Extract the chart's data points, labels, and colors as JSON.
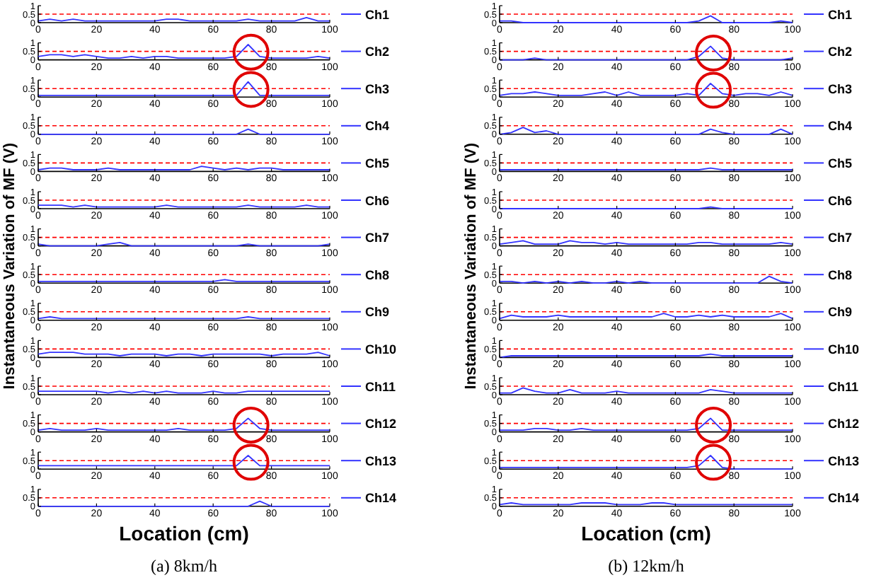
{
  "chart_data": [
    {
      "type": "line",
      "x": [
        0,
        4,
        8,
        12,
        16,
        20,
        24,
        28,
        32,
        36,
        40,
        44,
        48,
        52,
        56,
        60,
        64,
        68,
        72,
        76,
        80,
        84,
        88,
        92,
        96,
        100
      ],
      "xlim": [
        0,
        100
      ],
      "xticks": [
        0,
        20,
        40,
        60,
        80,
        100
      ],
      "ylim": [
        0,
        1
      ],
      "yticks": [
        0,
        0.5,
        1
      ],
      "ref_lines": [
        {
          "axis": "y",
          "value": 0.5,
          "color": "#ff0000",
          "line_style": "dashed"
        }
      ],
      "legend": "right",
      "series": [
        {
          "name": "Ch1",
          "color": "#3333ff",
          "values": [
            0.1,
            0.2,
            0.1,
            0.2,
            0.1,
            0.1,
            0.1,
            0.1,
            0.1,
            0.1,
            0.1,
            0.2,
            0.2,
            0.1,
            0.1,
            0.1,
            0.1,
            0.1,
            0.2,
            0.1,
            0.1,
            0.1,
            0.1,
            0.3,
            0.1,
            0.1
          ]
        }
      ]
    },
    {
      "type": "line",
      "x": [
        0,
        4,
        8,
        12,
        16,
        20,
        24,
        28,
        32,
        36,
        40,
        44,
        48,
        52,
        56,
        60,
        64,
        68,
        72,
        76,
        80,
        84,
        88,
        92,
        96,
        100
      ],
      "xlim": [
        0,
        100
      ],
      "xticks": [
        0,
        20,
        40,
        60,
        80,
        100
      ],
      "ylim": [
        0,
        1
      ],
      "yticks": [
        0,
        0.5,
        1
      ],
      "ref_lines": [
        {
          "axis": "y",
          "value": 0.5,
          "color": "#ff0000",
          "line_style": "dashed"
        }
      ],
      "legend": "right",
      "series": [
        {
          "name": "Ch2",
          "color": "#3333ff",
          "values": [
            0.2,
            0.3,
            0.3,
            0.2,
            0.3,
            0.2,
            0.1,
            0.1,
            0.2,
            0.1,
            0.2,
            0.2,
            0.1,
            0.1,
            0.1,
            0.1,
            0.1,
            0.2,
            0.9,
            0.2,
            0.1,
            0.1,
            0.1,
            0.1,
            0.2,
            0.1
          ]
        }
      ]
    },
    {
      "type": "line",
      "x": [
        0,
        4,
        8,
        12,
        16,
        20,
        24,
        28,
        32,
        36,
        40,
        44,
        48,
        52,
        56,
        60,
        64,
        68,
        72,
        76,
        80,
        84,
        88,
        92,
        96,
        100
      ],
      "xlim": [
        0,
        100
      ],
      "xticks": [
        0,
        20,
        40,
        60,
        80,
        100
      ],
      "ylim": [
        0,
        1
      ],
      "yticks": [
        0,
        0.5,
        1
      ],
      "ref_lines": [
        {
          "axis": "y",
          "value": 0.5,
          "color": "#ff0000",
          "line_style": "dashed"
        }
      ],
      "legend": "right",
      "series": [
        {
          "name": "Ch3",
          "color": "#3333ff",
          "values": [
            0.1,
            0.1,
            0.1,
            0.1,
            0.1,
            0.1,
            0.1,
            0.1,
            0.1,
            0.1,
            0.1,
            0.1,
            0.1,
            0.1,
            0.1,
            0.1,
            0.1,
            0.1,
            0.9,
            0.1,
            0.1,
            0.1,
            0.1,
            0.1,
            0.1,
            0.1
          ]
        }
      ]
    },
    {
      "type": "line",
      "x": [
        0,
        4,
        8,
        12,
        16,
        20,
        24,
        28,
        32,
        36,
        40,
        44,
        48,
        52,
        56,
        60,
        64,
        68,
        72,
        76,
        80,
        84,
        88,
        92,
        96,
        100
      ],
      "xlim": [
        0,
        100
      ],
      "xticks": [
        0,
        20,
        40,
        60,
        80,
        100
      ],
      "ylim": [
        0,
        1
      ],
      "yticks": [
        0,
        0.5,
        1
      ],
      "ref_lines": [
        {
          "axis": "y",
          "value": 0.5,
          "color": "#ff0000",
          "line_style": "dashed"
        }
      ],
      "legend": "right",
      "series": [
        {
          "name": "Ch4",
          "color": "#3333ff",
          "values": [
            0,
            0,
            0,
            0,
            0,
            0,
            0,
            0,
            0,
            0,
            0,
            0,
            0,
            0,
            0,
            0,
            0,
            0,
            0.3,
            0,
            0,
            0,
            0,
            0,
            0,
            0
          ]
        }
      ]
    },
    {
      "type": "line",
      "x": [
        0,
        4,
        8,
        12,
        16,
        20,
        24,
        28,
        32,
        36,
        40,
        44,
        48,
        52,
        56,
        60,
        64,
        68,
        72,
        76,
        80,
        84,
        88,
        92,
        96,
        100
      ],
      "xlim": [
        0,
        100
      ],
      "xticks": [
        0,
        20,
        40,
        60,
        80,
        100
      ],
      "ylim": [
        0,
        1
      ],
      "yticks": [
        0,
        0.5,
        1
      ],
      "ref_lines": [
        {
          "axis": "y",
          "value": 0.5,
          "color": "#ff0000",
          "line_style": "dashed"
        }
      ],
      "legend": "right",
      "series": [
        {
          "name": "Ch5",
          "color": "#3333ff",
          "values": [
            0.1,
            0.2,
            0.2,
            0.1,
            0.1,
            0.1,
            0.2,
            0.1,
            0.1,
            0.1,
            0.1,
            0.1,
            0.1,
            0.1,
            0.3,
            0.2,
            0.1,
            0.2,
            0.1,
            0.2,
            0.2,
            0.1,
            0.1,
            0.1,
            0.1,
            0.1
          ]
        }
      ]
    },
    {
      "type": "line",
      "x": [
        0,
        4,
        8,
        12,
        16,
        20,
        24,
        28,
        32,
        36,
        40,
        44,
        48,
        52,
        56,
        60,
        64,
        68,
        72,
        76,
        80,
        84,
        88,
        92,
        96,
        100
      ],
      "xlim": [
        0,
        100
      ],
      "xticks": [
        0,
        20,
        40,
        60,
        80,
        100
      ],
      "ylim": [
        0,
        1
      ],
      "yticks": [
        0,
        0.5,
        1
      ],
      "ref_lines": [
        {
          "axis": "y",
          "value": 0.5,
          "color": "#ff0000",
          "line_style": "dashed"
        }
      ],
      "legend": "right",
      "series": [
        {
          "name": "Ch6",
          "color": "#3333ff",
          "values": [
            0.2,
            0.2,
            0.2,
            0.1,
            0.2,
            0.1,
            0.1,
            0.1,
            0.1,
            0.1,
            0.1,
            0.2,
            0.1,
            0.1,
            0.1,
            0.1,
            0.1,
            0.1,
            0.2,
            0.1,
            0.1,
            0.1,
            0.1,
            0.2,
            0.1,
            0.1
          ]
        }
      ]
    },
    {
      "type": "line",
      "ylabel": "Instantaneous Variation of MF (V)",
      "x": [
        0,
        4,
        8,
        12,
        16,
        20,
        24,
        28,
        32,
        36,
        40,
        44,
        48,
        52,
        56,
        60,
        64,
        68,
        72,
        76,
        80,
        84,
        88,
        92,
        96,
        100
      ],
      "xlim": [
        0,
        100
      ],
      "xticks": [
        0,
        20,
        40,
        60,
        80,
        100
      ],
      "ylim": [
        0,
        1
      ],
      "yticks": [
        0,
        0.5,
        1
      ],
      "ref_lines": [
        {
          "axis": "y",
          "value": 0.5,
          "color": "#ff0000",
          "line_style": "dashed"
        }
      ],
      "legend": "right",
      "series": [
        {
          "name": "Ch7",
          "color": "#3333ff",
          "values": [
            0.1,
            0,
            0,
            0,
            0,
            0,
            0.1,
            0.2,
            0,
            0,
            0,
            0,
            0,
            0,
            0,
            0,
            0,
            0,
            0.1,
            0,
            0,
            0,
            0,
            0,
            0,
            0.1
          ]
        }
      ]
    },
    {
      "type": "line",
      "x": [
        0,
        4,
        8,
        12,
        16,
        20,
        24,
        28,
        32,
        36,
        40,
        44,
        48,
        52,
        56,
        60,
        64,
        68,
        72,
        76,
        80,
        84,
        88,
        92,
        96,
        100
      ],
      "xlim": [
        0,
        100
      ],
      "xticks": [
        0,
        20,
        40,
        60,
        80,
        100
      ],
      "ylim": [
        0,
        1
      ],
      "yticks": [
        0,
        0.5,
        1
      ],
      "ref_lines": [
        {
          "axis": "y",
          "value": 0.5,
          "color": "#ff0000",
          "line_style": "dashed"
        }
      ],
      "legend": "right",
      "series": [
        {
          "name": "Ch8",
          "color": "#3333ff",
          "values": [
            0.1,
            0.1,
            0.1,
            0.1,
            0.1,
            0.1,
            0.1,
            0.1,
            0.1,
            0.1,
            0.1,
            0.1,
            0.1,
            0.1,
            0.1,
            0.1,
            0.2,
            0.1,
            0.1,
            0.1,
            0.1,
            0.1,
            0.1,
            0.1,
            0.1,
            0.1
          ]
        }
      ]
    },
    {
      "type": "line",
      "x": [
        0,
        4,
        8,
        12,
        16,
        20,
        24,
        28,
        32,
        36,
        40,
        44,
        48,
        52,
        56,
        60,
        64,
        68,
        72,
        76,
        80,
        84,
        88,
        92,
        96,
        100
      ],
      "xlim": [
        0,
        100
      ],
      "xticks": [
        0,
        20,
        40,
        60,
        80,
        100
      ],
      "ylim": [
        0,
        1
      ],
      "yticks": [
        0,
        0.5,
        1
      ],
      "ref_lines": [
        {
          "axis": "y",
          "value": 0.5,
          "color": "#ff0000",
          "line_style": "dashed"
        }
      ],
      "legend": "right",
      "series": [
        {
          "name": "Ch9",
          "color": "#3333ff",
          "values": [
            0.1,
            0.2,
            0.1,
            0.1,
            0.1,
            0.1,
            0.1,
            0.1,
            0.1,
            0.1,
            0.1,
            0.1,
            0.1,
            0.1,
            0.1,
            0.1,
            0.1,
            0.1,
            0.2,
            0.1,
            0.1,
            0.1,
            0.1,
            0.1,
            0.1,
            0.1
          ]
        }
      ]
    },
    {
      "type": "line",
      "x": [
        0,
        4,
        8,
        12,
        16,
        20,
        24,
        28,
        32,
        36,
        40,
        44,
        48,
        52,
        56,
        60,
        64,
        68,
        72,
        76,
        80,
        84,
        88,
        92,
        96,
        100
      ],
      "xlim": [
        0,
        100
      ],
      "xticks": [
        0,
        20,
        40,
        60,
        80,
        100
      ],
      "ylim": [
        0,
        1
      ],
      "yticks": [
        0,
        0.5,
        1
      ],
      "ref_lines": [
        {
          "axis": "y",
          "value": 0.5,
          "color": "#ff0000",
          "line_style": "dashed"
        }
      ],
      "legend": "right",
      "series": [
        {
          "name": "Ch10",
          "color": "#3333ff",
          "values": [
            0.2,
            0.3,
            0.3,
            0.3,
            0.2,
            0.2,
            0.2,
            0.1,
            0.2,
            0.2,
            0.2,
            0.1,
            0.2,
            0.2,
            0.1,
            0.2,
            0.2,
            0.2,
            0.2,
            0.2,
            0.1,
            0.2,
            0.2,
            0.2,
            0.3,
            0.1
          ]
        }
      ]
    },
    {
      "type": "line",
      "x": [
        0,
        4,
        8,
        12,
        16,
        20,
        24,
        28,
        32,
        36,
        40,
        44,
        48,
        52,
        56,
        60,
        64,
        68,
        72,
        76,
        80,
        84,
        88,
        92,
        96,
        100
      ],
      "xlim": [
        0,
        100
      ],
      "xticks": [
        0,
        20,
        40,
        60,
        80,
        100
      ],
      "ylim": [
        0,
        1
      ],
      "yticks": [
        0,
        0.5,
        1
      ],
      "ref_lines": [
        {
          "axis": "y",
          "value": 0.5,
          "color": "#ff0000",
          "line_style": "dashed"
        }
      ],
      "legend": "right",
      "series": [
        {
          "name": "Ch11",
          "color": "#3333ff",
          "values": [
            0.2,
            0.2,
            0.2,
            0.2,
            0.2,
            0.2,
            0.1,
            0.2,
            0.1,
            0.2,
            0.1,
            0.2,
            0.1,
            0.1,
            0.1,
            0.2,
            0.1,
            0.1,
            0.2,
            0.2,
            0.2,
            0.2,
            0.2,
            0.2,
            0.2,
            0.2
          ]
        }
      ]
    },
    {
      "type": "line",
      "x": [
        0,
        4,
        8,
        12,
        16,
        20,
        24,
        28,
        32,
        36,
        40,
        44,
        48,
        52,
        56,
        60,
        64,
        68,
        72,
        76,
        80,
        84,
        88,
        92,
        96,
        100
      ],
      "xlim": [
        0,
        100
      ],
      "xticks": [
        0,
        20,
        40,
        60,
        80,
        100
      ],
      "ylim": [
        0,
        1
      ],
      "yticks": [
        0,
        0.5,
        1
      ],
      "ref_lines": [
        {
          "axis": "y",
          "value": 0.5,
          "color": "#ff0000",
          "line_style": "dashed"
        }
      ],
      "legend": "right",
      "series": [
        {
          "name": "Ch12",
          "color": "#3333ff",
          "values": [
            0.1,
            0.2,
            0.1,
            0.1,
            0.1,
            0.2,
            0.1,
            0.1,
            0.1,
            0.1,
            0.1,
            0.1,
            0.2,
            0.1,
            0.1,
            0.1,
            0.1,
            0.2,
            0.8,
            0.2,
            0.1,
            0.1,
            0.1,
            0.1,
            0.1,
            0.1
          ]
        }
      ]
    },
    {
      "type": "line",
      "x": [
        0,
        4,
        8,
        12,
        16,
        20,
        24,
        28,
        32,
        36,
        40,
        44,
        48,
        52,
        56,
        60,
        64,
        68,
        72,
        76,
        80,
        84,
        88,
        92,
        96,
        100
      ],
      "xlim": [
        0,
        100
      ],
      "xticks": [
        0,
        20,
        40,
        60,
        80,
        100
      ],
      "ylim": [
        0,
        1
      ],
      "yticks": [
        0,
        0.5,
        1
      ],
      "ref_lines": [
        {
          "axis": "y",
          "value": 0.5,
          "color": "#ff0000",
          "line_style": "dashed"
        }
      ],
      "legend": "right",
      "series": [
        {
          "name": "Ch13",
          "color": "#3333ff",
          "values": [
            0.2,
            0.2,
            0.2,
            0.2,
            0.2,
            0.2,
            0.2,
            0.2,
            0.2,
            0.2,
            0.2,
            0.2,
            0.2,
            0.2,
            0.2,
            0.2,
            0.2,
            0.2,
            0.8,
            0.2,
            0.2,
            0.2,
            0.2,
            0.2,
            0.2,
            0.2
          ]
        }
      ]
    },
    {
      "type": "line",
      "xlabel": "Location (cm)",
      "annotations": [
        "(a) 8km/h"
      ],
      "x": [
        0,
        4,
        8,
        12,
        16,
        20,
        24,
        28,
        32,
        36,
        40,
        44,
        48,
        52,
        56,
        60,
        64,
        68,
        72,
        76,
        80,
        84,
        88,
        92,
        96,
        100
      ],
      "xlim": [
        0,
        100
      ],
      "xticks": [
        0,
        20,
        40,
        60,
        80,
        100
      ],
      "ylim": [
        0,
        1
      ],
      "yticks": [
        0,
        0.5,
        1
      ],
      "ref_lines": [
        {
          "axis": "y",
          "value": 0.5,
          "color": "#ff0000",
          "line_style": "dashed"
        }
      ],
      "legend": "right",
      "series": [
        {
          "name": "Ch14",
          "color": "#3333ff",
          "values": [
            0,
            0,
            0,
            0,
            0,
            0,
            0,
            0,
            0,
            0,
            0,
            0,
            0,
            0,
            0,
            0,
            0,
            0,
            0,
            0.3,
            0,
            0,
            0,
            0,
            0,
            0
          ]
        }
      ]
    },
    {
      "type": "line",
      "x": [
        0,
        4,
        8,
        12,
        16,
        20,
        24,
        28,
        32,
        36,
        40,
        44,
        48,
        52,
        56,
        60,
        64,
        68,
        72,
        76,
        80,
        84,
        88,
        92,
        96,
        100
      ],
      "xlim": [
        0,
        100
      ],
      "xticks": [
        0,
        20,
        40,
        60,
        80,
        100
      ],
      "ylim": [
        0,
        1
      ],
      "yticks": [
        0,
        0.5,
        1
      ],
      "ref_lines": [
        {
          "axis": "y",
          "value": 0.5,
          "color": "#ff0000",
          "line_style": "dashed"
        }
      ],
      "legend": "right",
      "series": [
        {
          "name": "Ch1",
          "color": "#3333ff",
          "values": [
            0.1,
            0.1,
            0,
            0,
            0,
            0,
            0,
            0,
            0,
            0,
            0,
            0,
            0,
            0,
            0,
            0,
            0,
            0.1,
            0.4,
            0,
            0,
            0,
            0,
            0,
            0.1,
            0
          ]
        }
      ]
    },
    {
      "type": "line",
      "x": [
        0,
        4,
        8,
        12,
        16,
        20,
        24,
        28,
        32,
        36,
        40,
        44,
        48,
        52,
        56,
        60,
        64,
        68,
        72,
        76,
        80,
        84,
        88,
        92,
        96,
        100
      ],
      "xlim": [
        0,
        100
      ],
      "xticks": [
        0,
        20,
        40,
        60,
        80,
        100
      ],
      "ylim": [
        0,
        1
      ],
      "yticks": [
        0,
        0.5,
        1
      ],
      "ref_lines": [
        {
          "axis": "y",
          "value": 0.5,
          "color": "#ff0000",
          "line_style": "dashed"
        }
      ],
      "legend": "right",
      "series": [
        {
          "name": "Ch2",
          "color": "#3333ff",
          "values": [
            0,
            0,
            0,
            0.1,
            0,
            0,
            0,
            0,
            0,
            0,
            0,
            0,
            0,
            0,
            0,
            0,
            0,
            0.2,
            0.8,
            0.1,
            0,
            0,
            0,
            0,
            0,
            0.1
          ]
        }
      ]
    },
    {
      "type": "line",
      "x": [
        0,
        4,
        8,
        12,
        16,
        20,
        24,
        28,
        32,
        36,
        40,
        44,
        48,
        52,
        56,
        60,
        64,
        68,
        72,
        76,
        80,
        84,
        88,
        92,
        96,
        100
      ],
      "xlim": [
        0,
        100
      ],
      "xticks": [
        0,
        20,
        40,
        60,
        80,
        100
      ],
      "ylim": [
        0,
        1
      ],
      "yticks": [
        0,
        0.5,
        1
      ],
      "ref_lines": [
        {
          "axis": "y",
          "value": 0.5,
          "color": "#ff0000",
          "line_style": "dashed"
        }
      ],
      "legend": "right",
      "series": [
        {
          "name": "Ch3",
          "color": "#3333ff",
          "values": [
            0.1,
            0.2,
            0.2,
            0.3,
            0.2,
            0.1,
            0.1,
            0.1,
            0.2,
            0.3,
            0.1,
            0.3,
            0.1,
            0.1,
            0.1,
            0.1,
            0.2,
            0.1,
            0.8,
            0.2,
            0.1,
            0.2,
            0.2,
            0.1,
            0.3,
            0.1
          ]
        }
      ]
    },
    {
      "type": "line",
      "x": [
        0,
        4,
        8,
        12,
        16,
        20,
        24,
        28,
        32,
        36,
        40,
        44,
        48,
        52,
        56,
        60,
        64,
        68,
        72,
        76,
        80,
        84,
        88,
        92,
        96,
        100
      ],
      "xlim": [
        0,
        100
      ],
      "xticks": [
        0,
        20,
        40,
        60,
        80,
        100
      ],
      "ylim": [
        0,
        1
      ],
      "yticks": [
        0,
        0.5,
        1
      ],
      "ref_lines": [
        {
          "axis": "y",
          "value": 0.5,
          "color": "#ff0000",
          "line_style": "dashed"
        }
      ],
      "legend": "right",
      "series": [
        {
          "name": "Ch4",
          "color": "#3333ff",
          "values": [
            0,
            0.1,
            0.4,
            0.1,
            0.2,
            0,
            0,
            0,
            0,
            0,
            0,
            0,
            0,
            0,
            0,
            0,
            0,
            0,
            0.3,
            0.1,
            0,
            0,
            0,
            0,
            0.3,
            0
          ]
        }
      ]
    },
    {
      "type": "line",
      "x": [
        0,
        4,
        8,
        12,
        16,
        20,
        24,
        28,
        32,
        36,
        40,
        44,
        48,
        52,
        56,
        60,
        64,
        68,
        72,
        76,
        80,
        84,
        88,
        92,
        96,
        100
      ],
      "xlim": [
        0,
        100
      ],
      "xticks": [
        0,
        20,
        40,
        60,
        80,
        100
      ],
      "ylim": [
        0,
        1
      ],
      "yticks": [
        0,
        0.5,
        1
      ],
      "ref_lines": [
        {
          "axis": "y",
          "value": 0.5,
          "color": "#ff0000",
          "line_style": "dashed"
        }
      ],
      "legend": "right",
      "series": [
        {
          "name": "Ch5",
          "color": "#3333ff",
          "values": [
            0.1,
            0.1,
            0.1,
            0.1,
            0.1,
            0.1,
            0.1,
            0.1,
            0.1,
            0.1,
            0.1,
            0.1,
            0.1,
            0.1,
            0.1,
            0.1,
            0.1,
            0.1,
            0.2,
            0.1,
            0.1,
            0.1,
            0.1,
            0.1,
            0.1,
            0.1
          ]
        }
      ]
    },
    {
      "type": "line",
      "x": [
        0,
        4,
        8,
        12,
        16,
        20,
        24,
        28,
        32,
        36,
        40,
        44,
        48,
        52,
        56,
        60,
        64,
        68,
        72,
        76,
        80,
        84,
        88,
        92,
        96,
        100
      ],
      "xlim": [
        0,
        100
      ],
      "xticks": [
        0,
        20,
        40,
        60,
        80,
        100
      ],
      "ylim": [
        0,
        1
      ],
      "yticks": [
        0,
        0.5,
        1
      ],
      "ref_lines": [
        {
          "axis": "y",
          "value": 0.5,
          "color": "#ff0000",
          "line_style": "dashed"
        }
      ],
      "legend": "right",
      "series": [
        {
          "name": "Ch6",
          "color": "#3333ff",
          "values": [
            0,
            0,
            0,
            0,
            0,
            0,
            0,
            0,
            0,
            0,
            0,
            0,
            0,
            0,
            0,
            0,
            0,
            0,
            0.1,
            0,
            0,
            0,
            0,
            0,
            0,
            0
          ]
        }
      ]
    },
    {
      "type": "line",
      "ylabel": "Instantaneous Variation of MF (V)",
      "x": [
        0,
        4,
        8,
        12,
        16,
        20,
        24,
        28,
        32,
        36,
        40,
        44,
        48,
        52,
        56,
        60,
        64,
        68,
        72,
        76,
        80,
        84,
        88,
        92,
        96,
        100
      ],
      "xlim": [
        0,
        100
      ],
      "xticks": [
        0,
        20,
        40,
        60,
        80,
        100
      ],
      "ylim": [
        0,
        1
      ],
      "yticks": [
        0,
        0.5,
        1
      ],
      "ref_lines": [
        {
          "axis": "y",
          "value": 0.5,
          "color": "#ff0000",
          "line_style": "dashed"
        }
      ],
      "legend": "right",
      "series": [
        {
          "name": "Ch7",
          "color": "#3333ff",
          "values": [
            0.1,
            0.2,
            0.3,
            0.1,
            0.1,
            0.1,
            0.3,
            0.2,
            0.2,
            0.1,
            0.2,
            0.1,
            0.1,
            0.1,
            0.1,
            0.1,
            0.1,
            0.2,
            0.2,
            0.1,
            0.1,
            0.1,
            0.1,
            0.1,
            0.2,
            0.1
          ]
        }
      ]
    },
    {
      "type": "line",
      "x": [
        0,
        4,
        8,
        12,
        16,
        20,
        24,
        28,
        32,
        36,
        40,
        44,
        48,
        52,
        56,
        60,
        64,
        68,
        72,
        76,
        80,
        84,
        88,
        92,
        96,
        100
      ],
      "xlim": [
        0,
        100
      ],
      "xticks": [
        0,
        20,
        40,
        60,
        80,
        100
      ],
      "ylim": [
        0,
        1
      ],
      "yticks": [
        0,
        0.5,
        1
      ],
      "ref_lines": [
        {
          "axis": "y",
          "value": 0.5,
          "color": "#ff0000",
          "line_style": "dashed"
        }
      ],
      "legend": "right",
      "series": [
        {
          "name": "Ch8",
          "color": "#3333ff",
          "values": [
            0.1,
            0.1,
            0,
            0.1,
            0,
            0.1,
            0,
            0.1,
            0,
            0,
            0.1,
            0,
            0.1,
            0,
            0,
            0,
            0,
            0,
            0,
            0,
            0,
            0,
            0,
            0.4,
            0.1,
            0
          ]
        }
      ]
    },
    {
      "type": "line",
      "x": [
        0,
        4,
        8,
        12,
        16,
        20,
        24,
        28,
        32,
        36,
        40,
        44,
        48,
        52,
        56,
        60,
        64,
        68,
        72,
        76,
        80,
        84,
        88,
        92,
        96,
        100
      ],
      "xlim": [
        0,
        100
      ],
      "xticks": [
        0,
        20,
        40,
        60,
        80,
        100
      ],
      "ylim": [
        0,
        1
      ],
      "yticks": [
        0,
        0.5,
        1
      ],
      "ref_lines": [
        {
          "axis": "y",
          "value": 0.5,
          "color": "#ff0000",
          "line_style": "dashed"
        }
      ],
      "legend": "right",
      "series": [
        {
          "name": "Ch9",
          "color": "#3333ff",
          "values": [
            0.1,
            0.3,
            0.2,
            0.2,
            0.2,
            0.3,
            0.2,
            0.2,
            0.2,
            0.2,
            0.2,
            0.2,
            0.2,
            0.2,
            0.4,
            0.2,
            0.2,
            0.3,
            0.2,
            0.3,
            0.2,
            0.2,
            0.2,
            0.2,
            0.4,
            0.1
          ]
        }
      ]
    },
    {
      "type": "line",
      "x": [
        0,
        4,
        8,
        12,
        16,
        20,
        24,
        28,
        32,
        36,
        40,
        44,
        48,
        52,
        56,
        60,
        64,
        68,
        72,
        76,
        80,
        84,
        88,
        92,
        96,
        100
      ],
      "xlim": [
        0,
        100
      ],
      "xticks": [
        0,
        20,
        40,
        60,
        80,
        100
      ],
      "ylim": [
        0,
        1
      ],
      "yticks": [
        0,
        0.5,
        1
      ],
      "ref_lines": [
        {
          "axis": "y",
          "value": 0.5,
          "color": "#ff0000",
          "line_style": "dashed"
        }
      ],
      "legend": "right",
      "series": [
        {
          "name": "Ch10",
          "color": "#3333ff",
          "values": [
            0,
            0.1,
            0.1,
            0.1,
            0.1,
            0.1,
            0.1,
            0.1,
            0.1,
            0.1,
            0.1,
            0.1,
            0.1,
            0.1,
            0.1,
            0.1,
            0.1,
            0.1,
            0.2,
            0.1,
            0.1,
            0.1,
            0.1,
            0.1,
            0.1,
            0.1
          ]
        }
      ]
    },
    {
      "type": "line",
      "x": [
        0,
        4,
        8,
        12,
        16,
        20,
        24,
        28,
        32,
        36,
        40,
        44,
        48,
        52,
        56,
        60,
        64,
        68,
        72,
        76,
        80,
        84,
        88,
        92,
        96,
        100
      ],
      "xlim": [
        0,
        100
      ],
      "xticks": [
        0,
        20,
        40,
        60,
        80,
        100
      ],
      "ylim": [
        0,
        1
      ],
      "yticks": [
        0,
        0.5,
        1
      ],
      "ref_lines": [
        {
          "axis": "y",
          "value": 0.5,
          "color": "#ff0000",
          "line_style": "dashed"
        }
      ],
      "legend": "right",
      "series": [
        {
          "name": "Ch11",
          "color": "#3333ff",
          "values": [
            0.1,
            0.1,
            0.4,
            0.2,
            0.1,
            0.1,
            0.3,
            0.1,
            0.1,
            0.1,
            0.2,
            0.1,
            0.1,
            0.1,
            0.1,
            0.1,
            0.1,
            0.1,
            0.3,
            0.2,
            0.1,
            0.1,
            0.1,
            0.1,
            0.1,
            0.1
          ]
        }
      ]
    },
    {
      "type": "line",
      "x": [
        0,
        4,
        8,
        12,
        16,
        20,
        24,
        28,
        32,
        36,
        40,
        44,
        48,
        52,
        56,
        60,
        64,
        68,
        72,
        76,
        80,
        84,
        88,
        92,
        96,
        100
      ],
      "xlim": [
        0,
        100
      ],
      "xticks": [
        0,
        20,
        40,
        60,
        80,
        100
      ],
      "ylim": [
        0,
        1
      ],
      "yticks": [
        0,
        0.5,
        1
      ],
      "ref_lines": [
        {
          "axis": "y",
          "value": 0.5,
          "color": "#ff0000",
          "line_style": "dashed"
        }
      ],
      "legend": "right",
      "series": [
        {
          "name": "Ch12",
          "color": "#3333ff",
          "values": [
            0.1,
            0.1,
            0.1,
            0.2,
            0.2,
            0.1,
            0.1,
            0.2,
            0.1,
            0.1,
            0.1,
            0.1,
            0.1,
            0.1,
            0.1,
            0.1,
            0.1,
            0.2,
            0.8,
            0.1,
            0.1,
            0.1,
            0.1,
            0.1,
            0.1,
            0.1
          ]
        }
      ]
    },
    {
      "type": "line",
      "x": [
        0,
        4,
        8,
        12,
        16,
        20,
        24,
        28,
        32,
        36,
        40,
        44,
        48,
        52,
        56,
        60,
        64,
        68,
        72,
        76,
        80,
        84,
        88,
        92,
        96,
        100
      ],
      "xlim": [
        0,
        100
      ],
      "xticks": [
        0,
        20,
        40,
        60,
        80,
        100
      ],
      "ylim": [
        0,
        1
      ],
      "yticks": [
        0,
        0.5,
        1
      ],
      "ref_lines": [
        {
          "axis": "y",
          "value": 0.5,
          "color": "#ff0000",
          "line_style": "dashed"
        }
      ],
      "legend": "right",
      "series": [
        {
          "name": "Ch13",
          "color": "#3333ff",
          "values": [
            0.1,
            0.1,
            0.1,
            0.1,
            0.1,
            0.1,
            0.1,
            0.1,
            0.1,
            0.1,
            0.1,
            0.1,
            0.1,
            0.1,
            0.1,
            0.1,
            0.1,
            0.2,
            0.8,
            0.1,
            0,
            0,
            0,
            0,
            0,
            0
          ]
        }
      ]
    },
    {
      "type": "line",
      "xlabel": "Location (cm)",
      "annotations": [
        "(b) 12km/h"
      ],
      "x": [
        0,
        4,
        8,
        12,
        16,
        20,
        24,
        28,
        32,
        36,
        40,
        44,
        48,
        52,
        56,
        60,
        64,
        68,
        72,
        76,
        80,
        84,
        88,
        92,
        96,
        100
      ],
      "xlim": [
        0,
        100
      ],
      "xticks": [
        0,
        20,
        40,
        60,
        80,
        100
      ],
      "ylim": [
        0,
        1
      ],
      "yticks": [
        0,
        0.5,
        1
      ],
      "ref_lines": [
        {
          "axis": "y",
          "value": 0.5,
          "color": "#ff0000",
          "line_style": "dashed"
        }
      ],
      "legend": "right",
      "series": [
        {
          "name": "Ch14",
          "color": "#3333ff",
          "values": [
            0.1,
            0.2,
            0.1,
            0.1,
            0.1,
            0.1,
            0.1,
            0.2,
            0.2,
            0.2,
            0.1,
            0.1,
            0.1,
            0.2,
            0.2,
            0.1,
            0.1,
            0.1,
            0.1,
            0.1,
            0.1,
            0.1,
            0.1,
            0.1,
            0.1,
            0.1
          ]
        }
      ]
    }
  ]
}
